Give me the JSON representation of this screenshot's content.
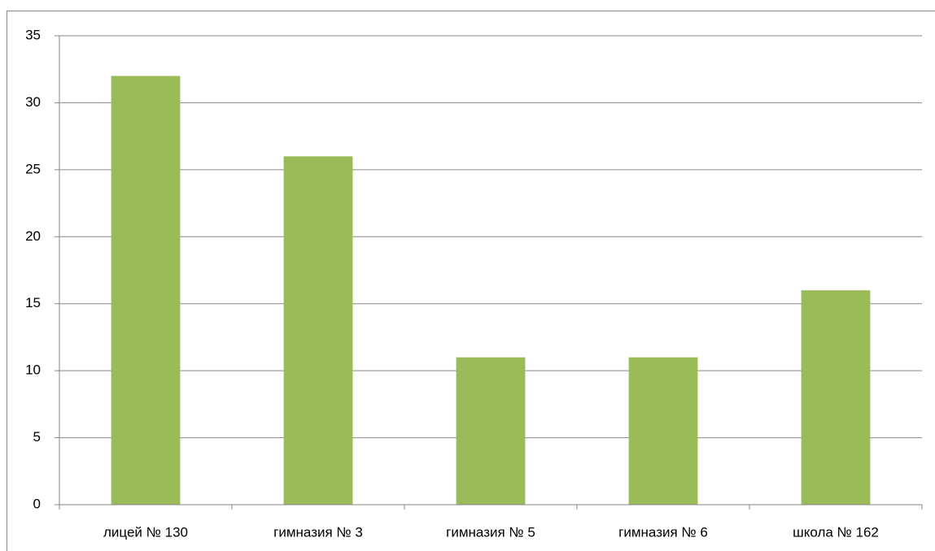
{
  "chart_data": {
    "type": "bar",
    "categories": [
      "лицей № 130",
      "гимназия № 3",
      "гимназия № 5",
      "гимназия № 6",
      "школа № 162"
    ],
    "values": [
      32,
      26,
      11,
      11,
      16
    ],
    "color": "#9bbb59",
    "ylim": [
      0,
      35
    ],
    "yticks": [
      0,
      5,
      10,
      15,
      20,
      25,
      30,
      35
    ],
    "grid": true
  }
}
